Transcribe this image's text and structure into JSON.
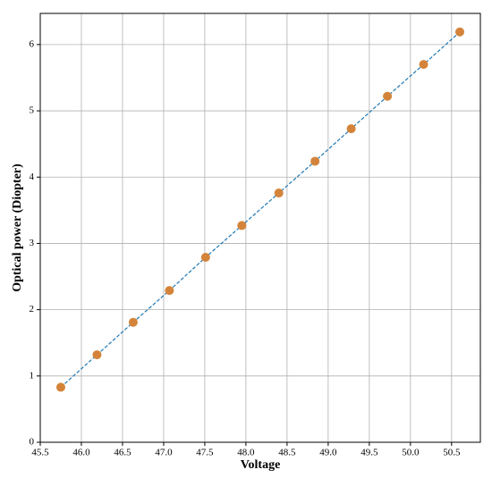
{
  "chart_data": {
    "type": "scatter",
    "xlabel": "Voltage",
    "ylabel": "Optical power (Diopter)",
    "x": [
      45.75,
      46.19,
      46.63,
      47.07,
      47.51,
      47.95,
      48.4,
      48.84,
      49.28,
      49.72,
      50.16,
      50.6
    ],
    "series": [
      {
        "color": "#d4843a",
        "line_color": "#1f77b4",
        "line_style": "dashed",
        "values": [
          0.83,
          1.32,
          1.81,
          2.29,
          2.79,
          3.27,
          3.76,
          4.24,
          4.73,
          5.22,
          5.7,
          6.19
        ]
      }
    ],
    "xlim": [
      45.5,
      50.85
    ],
    "ylim": [
      0,
      6.47
    ],
    "xticks": [
      45.5,
      {
        "value": 46,
        "label": "46.0"
      },
      46.5,
      {
        "value": 47,
        "label": "47.0"
      },
      47.5,
      {
        "value": 48,
        "label": "48.0"
      },
      48.5,
      {
        "value": 49,
        "label": "49.0"
      },
      49.5,
      {
        "value": 50,
        "label": "50.0"
      },
      50.5
    ],
    "yticks": [
      0,
      1,
      2,
      3,
      4,
      5,
      6
    ],
    "grid": true
  }
}
